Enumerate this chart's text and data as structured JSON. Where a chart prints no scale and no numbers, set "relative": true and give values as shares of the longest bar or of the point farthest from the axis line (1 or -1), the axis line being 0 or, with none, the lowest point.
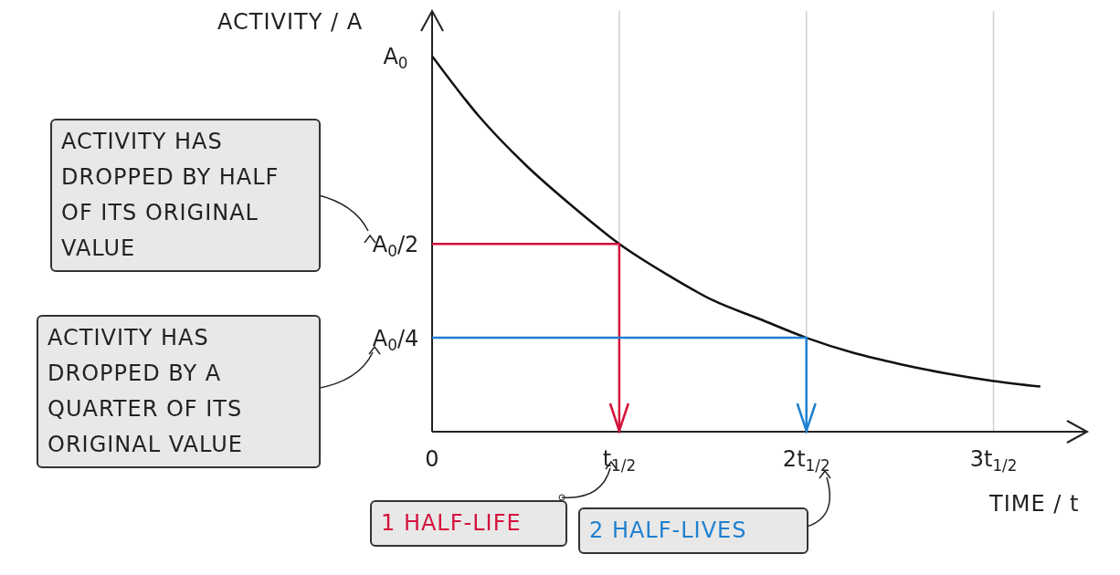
{
  "chart_data": {
    "type": "line",
    "xlabel": "TIME / t",
    "ylabel": "ACTIVITY / A",
    "relative": true,
    "categories": [
      "0",
      null,
      null,
      null,
      "t$_{1/2}$",
      null,
      null,
      null,
      "2t$_{1/2}$",
      null,
      null,
      null,
      "3t$_{1/2}$",
      null
    ],
    "grid": true,
    "marker": "none",
    "series": [
      {
        "color": "#111111",
        "values": [
          1,
          0.84,
          0.71,
          0.6,
          0.5,
          0.42,
          0.35,
          0.3,
          0.25,
          0.21,
          0.18,
          0.155,
          0.135,
          0.12
        ]
      }
    ],
    "annotations": [
      "A$_{0}$",
      "A$_{0}$/2",
      "A$_{0}$/4",
      "ACTIVITY HAS DROPPED BY HALF OF ITS ORIGINAL VALUE",
      "ACTIVITY HAS DROPPED BY A QUARTER OF ITS ORIGINAL VALUE",
      "1 HALF-LIFE",
      "2 HALF-LIVES"
    ]
  }
}
